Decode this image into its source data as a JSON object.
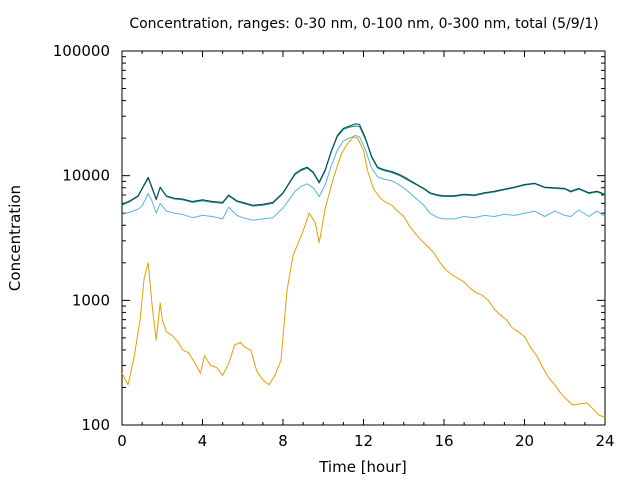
{
  "chart_data": {
    "type": "line",
    "title": "Concentration, ranges: 0-30 nm, 0-100 nm, 0-300 nm, total (5/9/1)",
    "xlabel": "Time [hour]",
    "ylabel": "Concentration",
    "xlim": [
      0,
      24
    ],
    "ylim": [
      100,
      100000
    ],
    "yscale": "log",
    "grid": false,
    "x_ticks": [
      "0",
      "4",
      "8",
      "12",
      "16",
      "20",
      "24"
    ],
    "y_ticks": [
      "100",
      "1000",
      "10000",
      "100000"
    ],
    "series": [
      {
        "color": "#e69f00",
        "x": [
          0,
          0.3,
          0.6,
          0.9,
          1.1,
          1.3,
          1.5,
          1.7,
          1.9,
          2.0,
          2.2,
          2.5,
          2.8,
          3.0,
          3.3,
          3.6,
          3.9,
          4.1,
          4.4,
          4.7,
          5.0,
          5.3,
          5.6,
          5.9,
          6.1,
          6.4,
          6.7,
          7.0,
          7.3,
          7.6,
          7.9,
          8.2,
          8.5,
          8.8,
          9.0,
          9.3,
          9.6,
          9.8,
          10.1,
          10.5,
          10.9,
          11.2,
          11.5,
          11.7,
          12.0,
          12.2,
          12.5,
          12.8,
          13.1,
          13.4,
          13.7,
          14.0,
          14.3,
          14.6,
          14.9,
          15.2,
          15.5,
          15.8,
          16.1,
          16.4,
          16.7,
          17.0,
          17.3,
          17.6,
          17.9,
          18.2,
          18.5,
          18.8,
          19.1,
          19.4,
          19.7,
          20.0,
          20.3,
          20.6,
          20.9,
          21.2,
          21.5,
          21.8,
          22.1,
          22.4,
          23.1,
          23.4,
          23.7,
          24.0
        ],
        "y": [
          260,
          210,
          350,
          700,
          1500,
          2000,
          900,
          480,
          950,
          700,
          560,
          520,
          460,
          400,
          380,
          320,
          260,
          360,
          300,
          290,
          250,
          310,
          440,
          460,
          420,
          400,
          270,
          230,
          210,
          250,
          330,
          1200,
          2300,
          3000,
          3600,
          5000,
          4200,
          2900,
          5500,
          9500,
          15000,
          18000,
          20500,
          20000,
          16000,
          11000,
          7800,
          6700,
          6100,
          5800,
          5200,
          4700,
          3900,
          3400,
          3000,
          2700,
          2400,
          2000,
          1750,
          1600,
          1500,
          1400,
          1250,
          1150,
          1100,
          1000,
          850,
          760,
          700,
          600,
          560,
          510,
          420,
          360,
          290,
          240,
          210,
          180,
          160,
          145,
          150,
          135,
          120,
          115
        ]
      },
      {
        "color": "#56b4e9",
        "x": [
          0,
          0.4,
          0.8,
          1.0,
          1.3,
          1.5,
          1.7,
          1.9,
          2.2,
          2.6,
          3.0,
          3.5,
          4.0,
          4.5,
          5.0,
          5.3,
          5.7,
          6.0,
          6.5,
          7.0,
          7.5,
          8.0,
          8.3,
          8.6,
          8.9,
          9.2,
          9.5,
          9.8,
          10.1,
          10.4,
          10.7,
          11.0,
          11.3,
          11.6,
          11.8,
          12.1,
          12.4,
          12.7,
          13.0,
          13.4,
          13.8,
          14.2,
          14.6,
          15.0,
          15.3,
          15.7,
          16.0,
          16.5,
          17.0,
          17.5,
          18.0,
          18.5,
          19.0,
          19.5,
          20.0,
          20.5,
          21.0,
          21.5,
          22.0,
          22.3,
          22.7,
          23.2,
          23.6,
          24.0
        ],
        "y": [
          4900,
          5100,
          5400,
          5700,
          7200,
          6200,
          5000,
          6000,
          5200,
          5000,
          4900,
          4600,
          4800,
          4700,
          4500,
          5600,
          4800,
          4600,
          4400,
          4500,
          4600,
          5500,
          6400,
          7500,
          8200,
          8600,
          8000,
          6800,
          8500,
          12000,
          16000,
          19000,
          20000,
          21000,
          20500,
          16000,
          11500,
          9800,
          9400,
          9100,
          8400,
          7500,
          6600,
          5800,
          5000,
          4600,
          4500,
          4500,
          4700,
          4600,
          4800,
          4700,
          4900,
          4800,
          5000,
          5200,
          4700,
          5200,
          4800,
          4700,
          5300,
          4700,
          5200,
          4700
        ]
      },
      {
        "color": "#009e73",
        "x": [
          0,
          0.4,
          0.8,
          1.0,
          1.3,
          1.5,
          1.7,
          1.9,
          2.2,
          2.6,
          3.0,
          3.5,
          4.0,
          4.5,
          5.0,
          5.3,
          5.7,
          6.0,
          6.5,
          7.0,
          7.5,
          8.0,
          8.3,
          8.6,
          8.9,
          9.2,
          9.5,
          9.8,
          10.1,
          10.4,
          10.7,
          11.0,
          11.3,
          11.6,
          11.8,
          12.1,
          12.4,
          12.7,
          13.0,
          13.4,
          13.8,
          14.2,
          14.6,
          15.0,
          15.3,
          15.7,
          16.0,
          16.5,
          17.0,
          17.5,
          18.0,
          18.5,
          19.0,
          19.5,
          20.0,
          20.5,
          21.0,
          21.5,
          22.0,
          22.3,
          22.7,
          23.2,
          23.6,
          24.0
        ],
        "y": [
          5800,
          6200,
          6800,
          7800,
          9500,
          7800,
          6400,
          8000,
          6800,
          6500,
          6400,
          6100,
          6300,
          6100,
          6000,
          6900,
          6200,
          6000,
          5700,
          5800,
          6000,
          7200,
          8600,
          10200,
          11000,
          11500,
          10500,
          8700,
          11000,
          15500,
          20500,
          23500,
          24500,
          25000,
          24800,
          19500,
          14000,
          11500,
          11000,
          10600,
          10000,
          9200,
          8500,
          7800,
          7200,
          6900,
          6800,
          6800,
          7000,
          6900,
          7200,
          7400,
          7700,
          8000,
          8400,
          8600,
          8000,
          7900,
          7800,
          7400,
          7800,
          7200,
          7400,
          7000
        ]
      },
      {
        "color": "#0e3e5a",
        "x": [
          0,
          0.4,
          0.8,
          1.0,
          1.3,
          1.5,
          1.7,
          1.9,
          2.2,
          2.6,
          3.0,
          3.5,
          4.0,
          4.5,
          5.0,
          5.3,
          5.7,
          6.0,
          6.5,
          7.0,
          7.5,
          8.0,
          8.3,
          8.6,
          8.9,
          9.2,
          9.5,
          9.8,
          10.1,
          10.4,
          10.7,
          11.0,
          11.3,
          11.6,
          11.8,
          12.1,
          12.4,
          12.7,
          13.0,
          13.4,
          13.8,
          14.2,
          14.6,
          15.0,
          15.3,
          15.7,
          16.0,
          16.5,
          17.0,
          17.5,
          18.0,
          18.5,
          19.0,
          19.5,
          20.0,
          20.5,
          21.0,
          21.5,
          22.0,
          22.3,
          22.7,
          23.2,
          23.6,
          24.0
        ],
        "y": [
          5900,
          6300,
          6900,
          7900,
          9700,
          8000,
          6500,
          8100,
          6900,
          6600,
          6500,
          6200,
          6400,
          6200,
          6100,
          7000,
          6300,
          6100,
          5800,
          5900,
          6100,
          7300,
          8700,
          10400,
          11200,
          11700,
          10700,
          8900,
          11200,
          15800,
          21000,
          24000,
          25000,
          26000,
          25800,
          20000,
          14300,
          11700,
          11200,
          10800,
          10200,
          9400,
          8600,
          7900,
          7300,
          7000,
          6900,
          6900,
          7100,
          7000,
          7300,
          7500,
          7800,
          8100,
          8500,
          8700,
          8100,
          8000,
          7900,
          7500,
          7900,
          7300,
          7500,
          7100
        ]
      }
    ]
  }
}
